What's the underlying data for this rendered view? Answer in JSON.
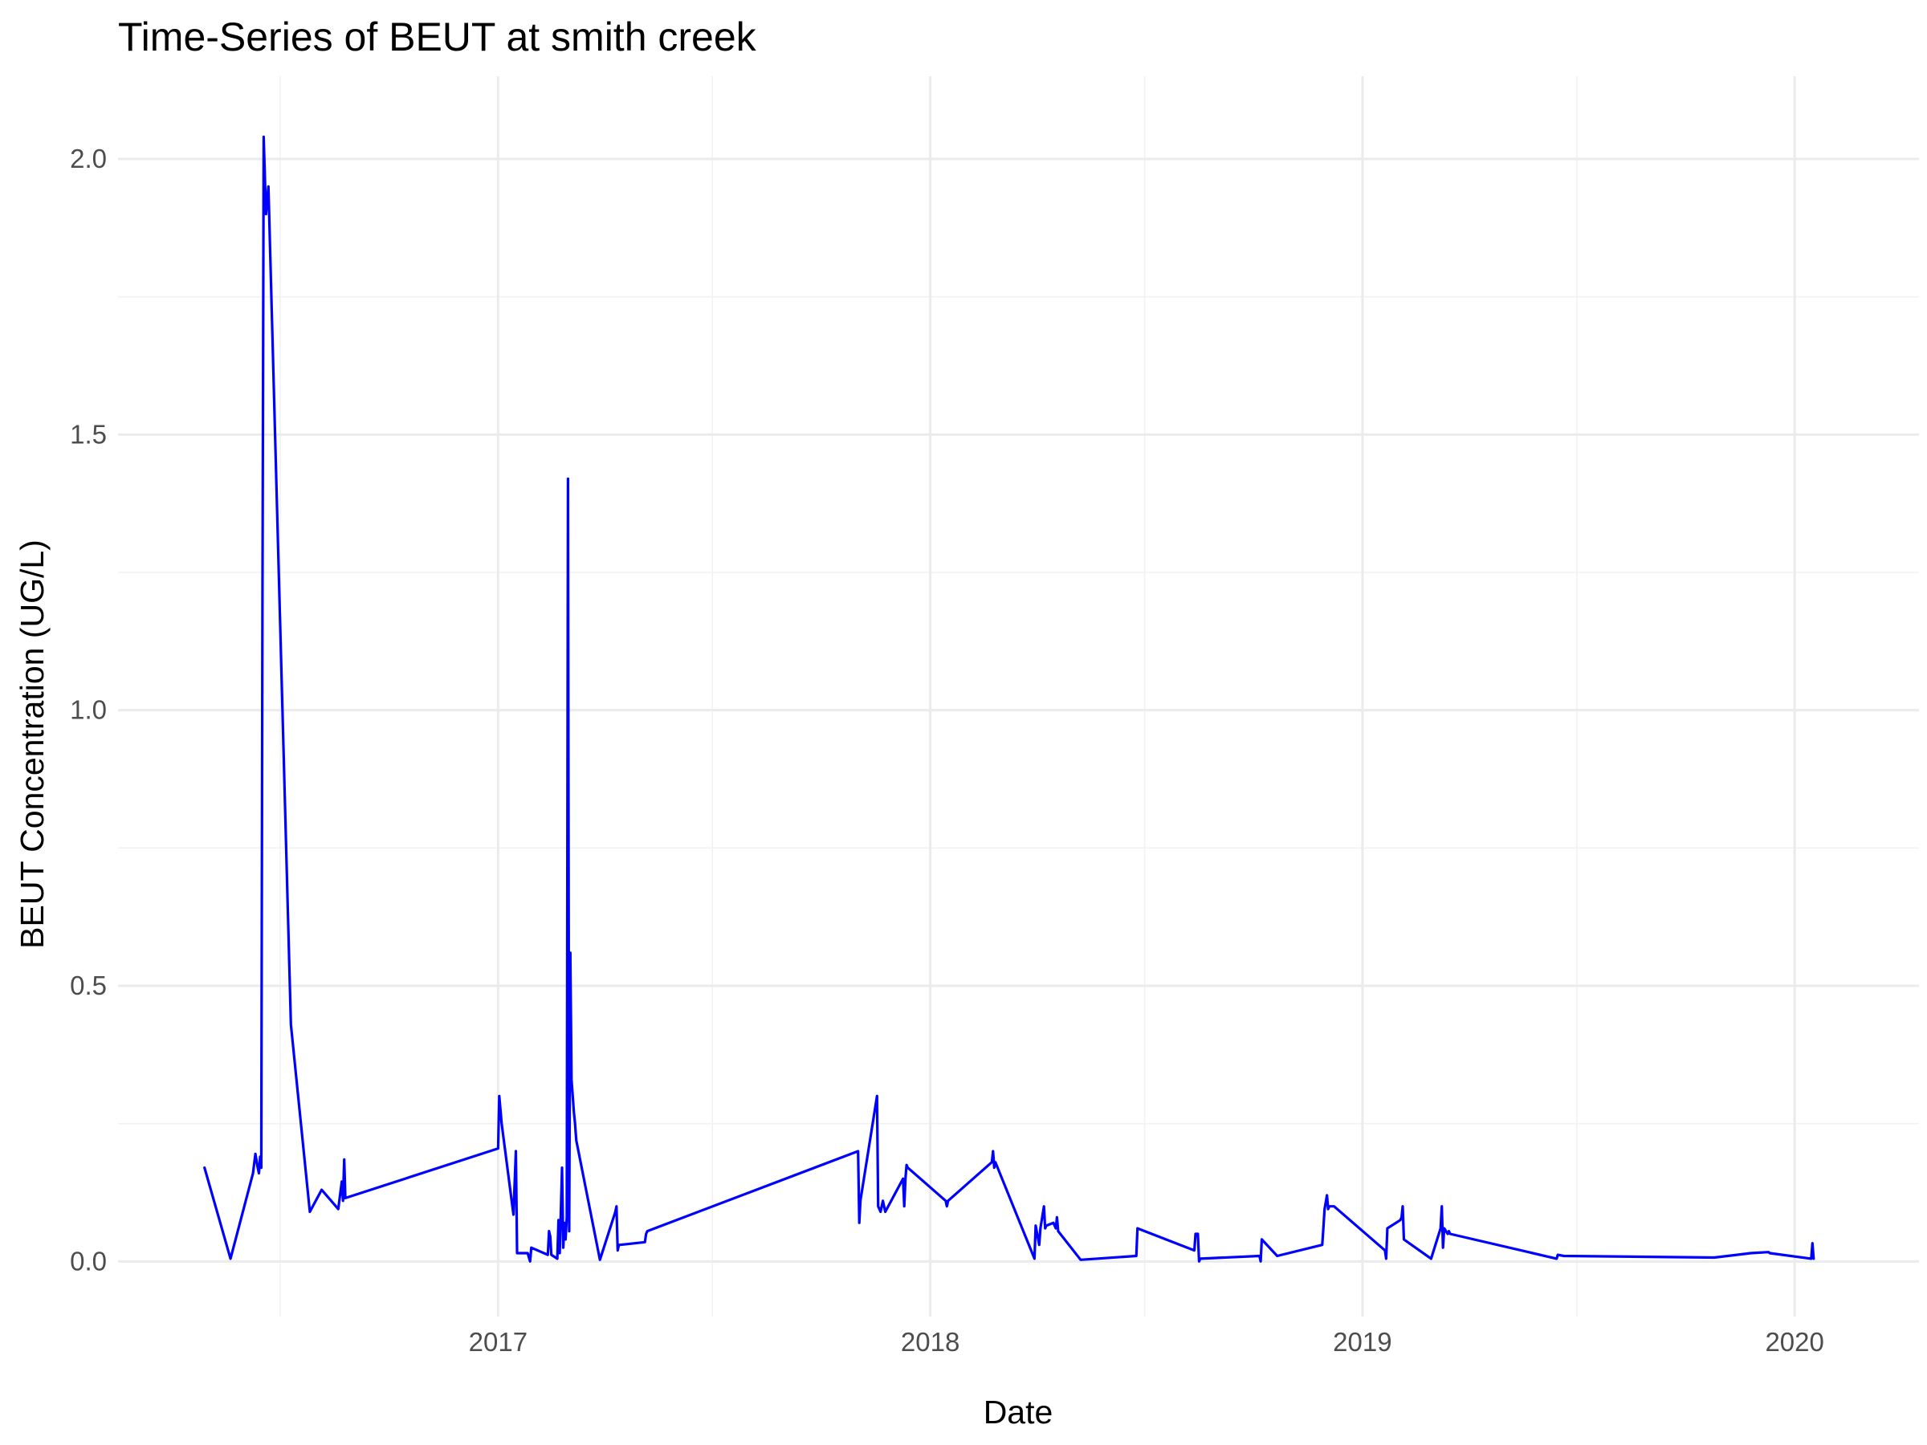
{
  "chart_data": {
    "type": "line",
    "title": "Time-Series of BEUT at smith creek",
    "xlabel": "Date",
    "ylabel": "BEUT Concentration (UG/L)",
    "x_type": "date",
    "xlim": [
      "2016-02-15",
      "2020-04-15"
    ],
    "ylim": [
      -0.1,
      2.15
    ],
    "x_ticks": [
      "2017-01-01",
      "2018-01-01",
      "2019-01-01",
      "2020-01-01"
    ],
    "x_tick_labels": [
      "2017",
      "2018",
      "2019",
      "2020"
    ],
    "x_minor_ticks": [
      "2016-07-01",
      "2017-07-01",
      "2018-07-01",
      "2019-07-01"
    ],
    "y_ticks": [
      0.0,
      0.5,
      1.0,
      1.5,
      2.0
    ],
    "y_tick_labels": [
      "0.0",
      "0.5",
      "1.0",
      "1.5",
      "2.0"
    ],
    "y_minor_ticks": [
      0.25,
      0.75,
      1.25,
      1.75
    ],
    "grid": true,
    "legend": "none",
    "colors": {
      "line": "#0000ff",
      "grid_major": "#ebebeb",
      "grid_minor": "#f2f2f2"
    },
    "series": [
      {
        "x": [
          "2016-04-28",
          "2016-05-20",
          "2016-06-08",
          "2016-06-10",
          "2016-06-12",
          "2016-06-13",
          "2016-06-14",
          "2016-06-15",
          "2016-06-16",
          "2016-06-17",
          "2016-06-19",
          "2016-06-21",
          "2016-07-10",
          "2016-07-26",
          "2016-08-05",
          "2016-08-19",
          "2016-08-22",
          "2016-08-23",
          "2016-08-24",
          "2016-08-25",
          "2017-01-01",
          "2017-01-02",
          "2017-01-04",
          "2017-01-14",
          "2017-01-16",
          "2017-01-17",
          "2017-01-19",
          "2017-01-20",
          "2017-01-26",
          "2017-01-28",
          "2017-01-29",
          "2017-02-12",
          "2017-02-13",
          "2017-02-14",
          "2017-02-15",
          "2017-02-20",
          "2017-02-21",
          "2017-02-22",
          "2017-02-24",
          "2017-02-25",
          "2017-02-26",
          "2017-02-27",
          "2017-02-28",
          "2017-03-01",
          "2017-03-02",
          "2017-03-03",
          "2017-03-04",
          "2017-03-05",
          "2017-03-06",
          "2017-03-07",
          "2017-03-08",
          "2017-03-28",
          "2017-04-10",
          "2017-04-11",
          "2017-04-12",
          "2017-04-13",
          "2017-04-14",
          "2017-05-05",
          "2017-05-06",
          "2017-05-07",
          "2017-11-01",
          "2017-11-02",
          "2017-11-03",
          "2017-11-17",
          "2017-11-18",
          "2017-11-20",
          "2017-11-22",
          "2017-11-24",
          "2017-12-09",
          "2017-12-10",
          "2017-12-11",
          "2017-12-12",
          "2017-12-13",
          "2018-01-14",
          "2018-01-15",
          "2018-01-16",
          "2018-02-22",
          "2018-02-23",
          "2018-02-24",
          "2018-02-25",
          "2018-03-30",
          "2018-03-31",
          "2018-04-03",
          "2018-04-04",
          "2018-04-07",
          "2018-04-08",
          "2018-04-09",
          "2018-04-15",
          "2018-04-17",
          "2018-04-18",
          "2018-04-19",
          "2018-05-08",
          "2018-06-24",
          "2018-06-25",
          "2018-08-12",
          "2018-08-13",
          "2018-08-15",
          "2018-08-16",
          "2018-08-17",
          "2018-10-06",
          "2018-10-07",
          "2018-10-08",
          "2018-10-21",
          "2018-11-28",
          "2018-11-29",
          "2018-11-30",
          "2018-12-02",
          "2018-12-03",
          "2018-12-04",
          "2018-12-08",
          "2019-01-20",
          "2019-01-21",
          "2019-01-22",
          "2019-02-02",
          "2019-02-03",
          "2019-02-04",
          "2019-02-05",
          "2019-02-28",
          "2019-03-08",
          "2019-03-09",
          "2019-03-10",
          "2019-03-11",
          "2019-03-14",
          "2019-03-15",
          "2019-03-16",
          "2019-06-14",
          "2019-06-15",
          "2019-06-20",
          "2019-10-25",
          "2019-11-25",
          "2019-12-10",
          "2019-12-11",
          "2020-01-15",
          "2020-01-16",
          "2020-01-17"
        ],
        "y": [
          0.17,
          0.005,
          0.16,
          0.195,
          0.17,
          0.16,
          0.19,
          0.17,
          1.2,
          2.04,
          1.9,
          1.95,
          0.43,
          0.09,
          0.13,
          0.095,
          0.145,
          0.11,
          0.185,
          0.115,
          0.205,
          0.3,
          0.25,
          0.085,
          0.2,
          0.015,
          0.015,
          0.015,
          0.015,
          0.0,
          0.025,
          0.012,
          0.055,
          0.045,
          0.012,
          0.005,
          0.075,
          0.015,
          0.17,
          0.025,
          0.07,
          0.04,
          0.08,
          1.42,
          0.055,
          0.56,
          0.33,
          0.3,
          0.27,
          0.25,
          0.22,
          0.003,
          0.09,
          0.1,
          0.02,
          0.03,
          0.03,
          0.035,
          0.05,
          0.055,
          0.2,
          0.07,
          0.11,
          0.3,
          0.1,
          0.09,
          0.11,
          0.09,
          0.15,
          0.1,
          0.15,
          0.175,
          0.17,
          0.11,
          0.1,
          0.11,
          0.18,
          0.2,
          0.17,
          0.18,
          0.005,
          0.065,
          0.03,
          0.06,
          0.1,
          0.06,
          0.065,
          0.07,
          0.06,
          0.08,
          0.055,
          0.003,
          0.01,
          0.06,
          0.02,
          0.05,
          0.05,
          0.0,
          0.005,
          0.01,
          0.0,
          0.04,
          0.01,
          0.03,
          0.06,
          0.095,
          0.12,
          0.095,
          0.1,
          0.1,
          0.02,
          0.005,
          0.06,
          0.075,
          0.08,
          0.1,
          0.04,
          0.005,
          0.06,
          0.1,
          0.025,
          0.06,
          0.05,
          0.055,
          0.05,
          0.005,
          0.012,
          0.01,
          0.007,
          0.015,
          0.017,
          0.015,
          0.005,
          0.033,
          0.005
        ]
      }
    ]
  }
}
